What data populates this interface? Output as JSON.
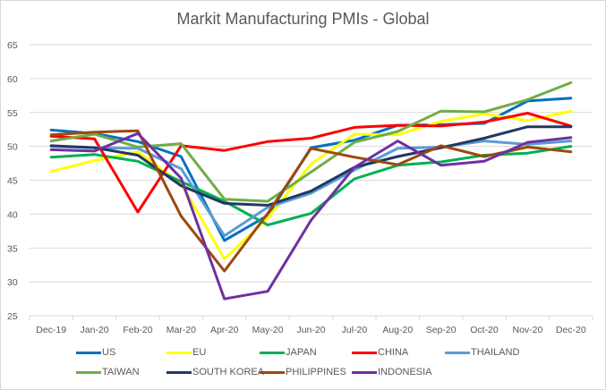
{
  "chart_data": {
    "type": "line",
    "title": "Markit Manufacturing PMIs - Global",
    "xlabel": "",
    "ylabel": "",
    "ylim": [
      25,
      65
    ],
    "yticks": [
      "25",
      "30",
      "35",
      "40",
      "45",
      "50",
      "55",
      "60",
      "65"
    ],
    "ytick_values": [
      25,
      30,
      35,
      40,
      45,
      50,
      55,
      60,
      65
    ],
    "grid": true,
    "legend_position": "bottom",
    "categories": [
      "Dec-19",
      "Jan-20",
      "Feb-20",
      "Mar-20",
      "Apr-20",
      "May-20",
      "Jun-20",
      "Jul-20",
      "Aug-20",
      "Sep-20",
      "Oct-20",
      "Nov-20",
      "Dec-20"
    ],
    "series": [
      {
        "name": "US",
        "color": "#0070c0",
        "values": [
          52.4,
          51.9,
          50.7,
          48.5,
          36.1,
          39.8,
          49.8,
          50.9,
          53.1,
          53.2,
          53.4,
          56.7,
          57.1
        ]
      },
      {
        "name": "EU",
        "color": "#ffff00",
        "values": [
          46.3,
          47.9,
          49.2,
          44.5,
          33.4,
          39.4,
          47.4,
          51.8,
          51.7,
          53.7,
          54.8,
          53.8,
          55.2
        ]
      },
      {
        "name": "JAPAN",
        "color": "#00b050",
        "values": [
          48.4,
          48.8,
          47.8,
          44.8,
          41.9,
          38.4,
          40.1,
          45.2,
          47.2,
          47.7,
          48.7,
          49.0,
          50.0
        ]
      },
      {
        "name": "CHINA",
        "color": "#ff0000",
        "values": [
          51.5,
          51.1,
          40.3,
          50.1,
          49.4,
          50.7,
          51.2,
          52.8,
          53.1,
          53.0,
          53.6,
          54.9,
          53.0
        ]
      },
      {
        "name": "THAILAND",
        "color": "#5b9bd5",
        "values": [
          50.0,
          49.8,
          49.7,
          46.7,
          36.8,
          41.0,
          43.1,
          46.5,
          49.7,
          49.9,
          50.8,
          50.3,
          50.8
        ]
      },
      {
        "name": "TAIWAN",
        "color": "#70ad47",
        "values": [
          50.8,
          51.8,
          49.9,
          50.4,
          42.2,
          41.9,
          46.2,
          50.6,
          52.2,
          55.2,
          55.1,
          56.9,
          59.4
        ]
      },
      {
        "name": "SOUTH KOREA",
        "color": "#203864",
        "values": [
          50.1,
          49.8,
          48.7,
          44.2,
          41.6,
          41.3,
          43.4,
          46.9,
          48.5,
          49.8,
          51.2,
          52.9,
          52.9
        ]
      },
      {
        "name": "PHILIPPINES",
        "color": "#9e480e",
        "values": [
          51.7,
          52.1,
          52.3,
          39.7,
          31.6,
          40.1,
          49.7,
          48.4,
          47.3,
          50.1,
          48.5,
          49.9,
          49.2
        ]
      },
      {
        "name": "INDONESIA",
        "color": "#7030a0",
        "values": [
          49.5,
          49.3,
          51.9,
          45.3,
          27.5,
          28.6,
          39.1,
          46.9,
          50.8,
          47.2,
          47.8,
          50.6,
          51.3
        ]
      }
    ]
  }
}
